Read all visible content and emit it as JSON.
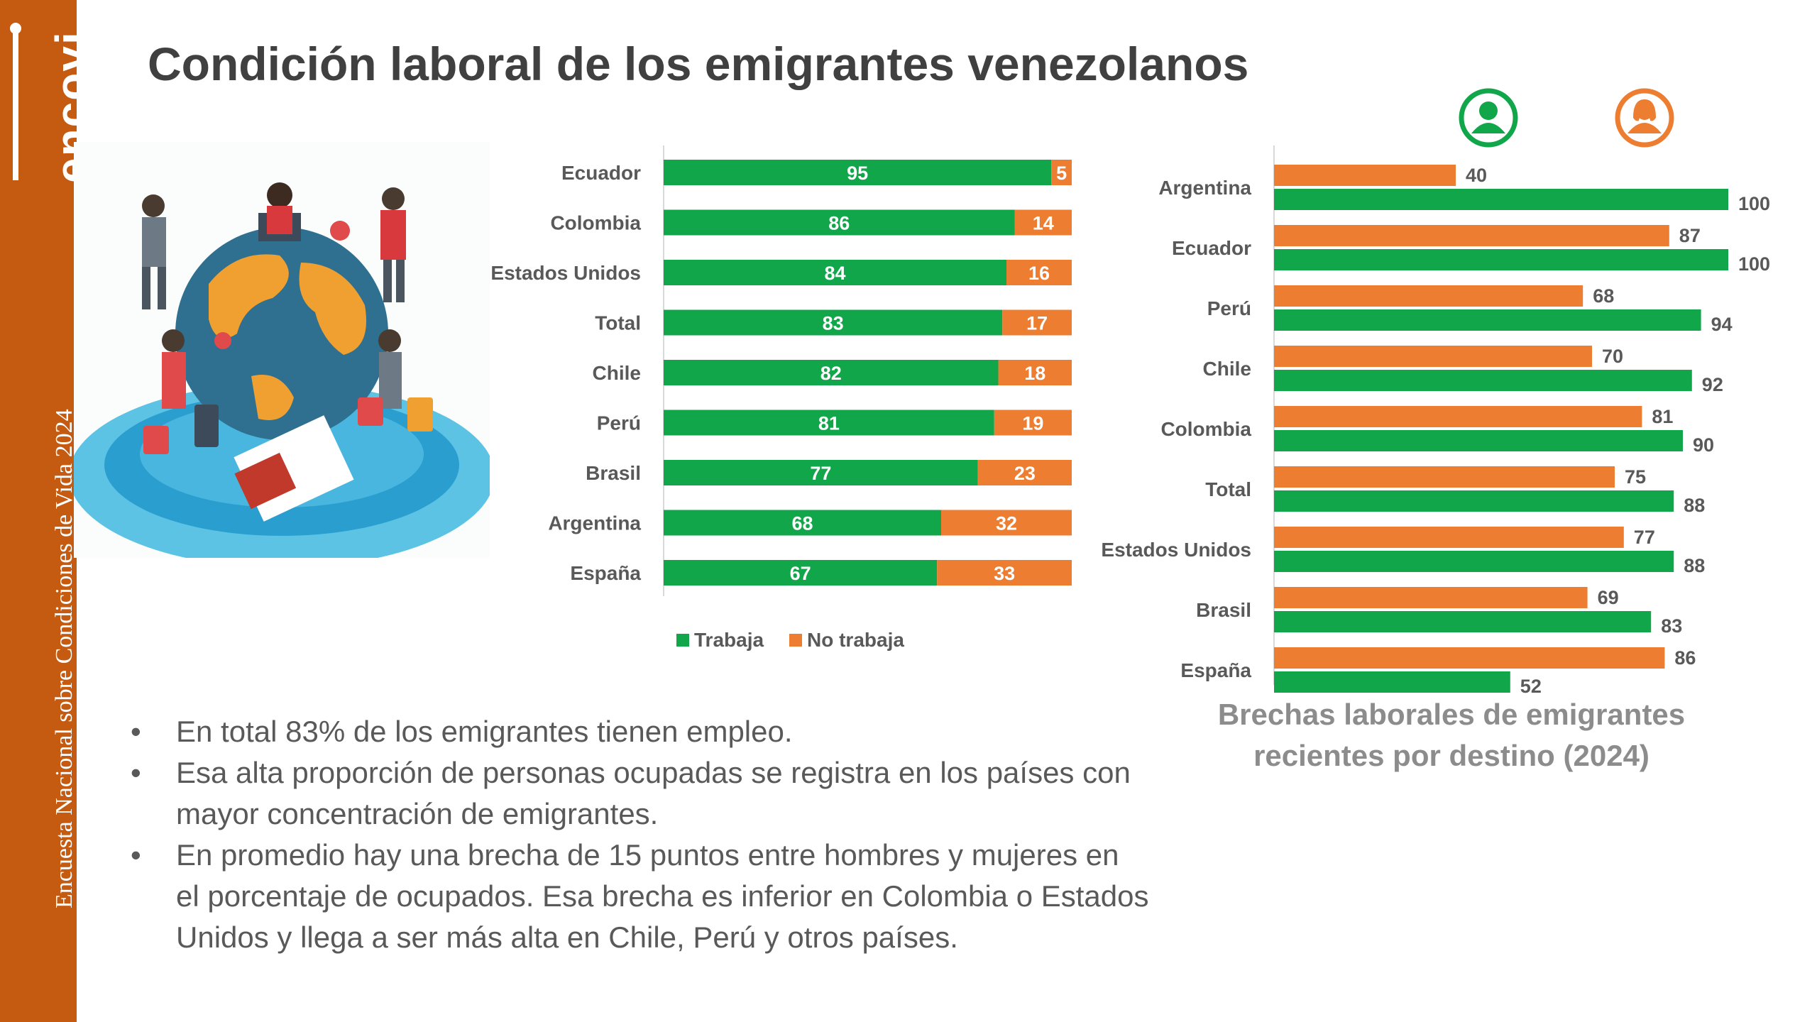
{
  "brand": {
    "logo_text": "encovi",
    "vertical_text": "Encuesta Nacional sobre Condiciones de Vida 2024"
  },
  "title": "Condición laboral de los emigrantes venezolanos",
  "colors": {
    "green": "#12a64b",
    "orange": "#ed7d31",
    "brand": "#c55a11",
    "text": "#595959"
  },
  "icons": {
    "male": "male-person-icon",
    "female": "female-person-icon"
  },
  "bullets": [
    "En total 83% de los emigrantes tienen empleo.",
    "Esa alta proporción de personas ocupadas se registra en los países con mayor concentración de emigrantes.",
    "En promedio hay una brecha de 15 puntos entre hombres y mujeres en  el porcentaje de ocupados. Esa brecha es inferior en Colombia o Estados Unidos y llega a ser más alta en Chile, Perú y otros países."
  ],
  "chart2_caption": "Brechas laborales de emigrantes recientes por destino (2024)",
  "chart_data": [
    {
      "type": "bar",
      "orientation": "horizontal",
      "stacked": true,
      "categories": [
        "Ecuador",
        "Colombia",
        "Estados Unidos",
        "Total",
        "Chile",
        "Perú",
        "Brasil",
        "Argentina",
        "España"
      ],
      "series": [
        {
          "name": "Trabaja",
          "values": [
            95,
            86,
            84,
            83,
            82,
            81,
            77,
            68,
            67
          ]
        },
        {
          "name": "No trabaja",
          "values": [
            5,
            14,
            16,
            17,
            18,
            19,
            23,
            32,
            33
          ]
        }
      ],
      "xlim": [
        0,
        100
      ],
      "legend": "bottom"
    },
    {
      "type": "bar",
      "orientation": "horizontal",
      "stacked": false,
      "title": "Brechas laborales de emigrantes recientes por destino (2024)",
      "categories": [
        "Argentina",
        "Ecuador",
        "Perú",
        "Chile",
        "Colombia",
        "Total",
        "Estados Unidos",
        "Brasil",
        "España"
      ],
      "series": [
        {
          "name": "Mujeres",
          "values": [
            40,
            87,
            68,
            70,
            81,
            75,
            77,
            69,
            86
          ]
        },
        {
          "name": "Hombres",
          "values": [
            100,
            100,
            94,
            92,
            90,
            88,
            88,
            83,
            52
          ]
        }
      ],
      "xlim": [
        0,
        100
      ]
    }
  ]
}
